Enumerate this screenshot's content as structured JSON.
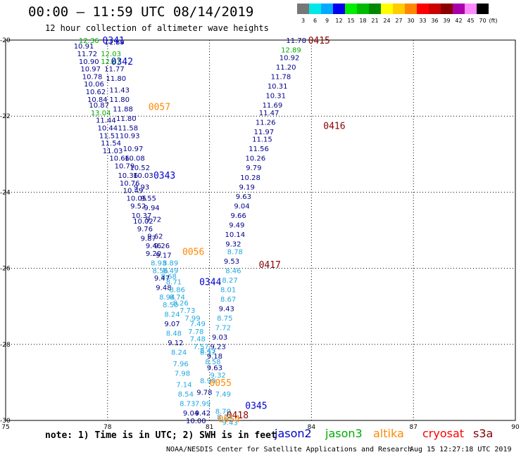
{
  "header": {
    "title": "00:00 — 11:59 UTC 08/14/2019",
    "subtitle": "12 hour collection of altimeter wave heights"
  },
  "colorbar": {
    "unit": "(ft)",
    "bins": [
      {
        "label": "3",
        "color": "#777777"
      },
      {
        "label": "6",
        "color": "#00e8e8"
      },
      {
        "label": "9",
        "color": "#00aaff"
      },
      {
        "label": "12",
        "color": "#0000ee"
      },
      {
        "label": "15",
        "color": "#00ee00"
      },
      {
        "label": "18",
        "color": "#00bb00"
      },
      {
        "label": "21",
        "color": "#008800"
      },
      {
        "label": "24",
        "color": "#ffff00"
      },
      {
        "label": "27",
        "color": "#ffcc00"
      },
      {
        "label": "30",
        "color": "#ff8800"
      },
      {
        "label": "33",
        "color": "#ff0000"
      },
      {
        "label": "36",
        "color": "#cc0000"
      },
      {
        "label": "39",
        "color": "#880000"
      },
      {
        "label": "42",
        "color": "#aa00aa"
      },
      {
        "label": "45",
        "color": "#ff88ff"
      },
      {
        "label": "70",
        "color": "#000000"
      }
    ]
  },
  "axes": {
    "lat_ticks": [
      "20",
      "22",
      "24",
      "26",
      "28",
      "30"
    ],
    "lon_ticks": [
      "75",
      "78",
      "81",
      "84",
      "87",
      "90"
    ]
  },
  "satellite_colors": {
    "jason2": "#0000cc",
    "jason3": "#00aa00",
    "altika": "#ff8800",
    "cryosat": "#ff0000",
    "s3a": "#880000",
    "light": "#22a8e0",
    "navy": "#00008b"
  },
  "tracks": [
    {
      "label": "0341",
      "lat": -20.0,
      "lon": 77.85,
      "sat": "jason2"
    },
    {
      "label": "0342",
      "lat": -20.55,
      "lon": 78.1,
      "sat": "jason2"
    },
    {
      "label": "0057",
      "lat": -21.75,
      "lon": 79.2,
      "sat": "altika"
    },
    {
      "label": "0343",
      "lat": -23.55,
      "lon": 79.35,
      "sat": "jason2"
    },
    {
      "label": "0056",
      "lat": -25.55,
      "lon": 80.2,
      "sat": "altika"
    },
    {
      "label": "0344",
      "lat": -26.35,
      "lon": 80.7,
      "sat": "jason2"
    },
    {
      "label": "0055",
      "lat": -29.0,
      "lon": 81.0,
      "sat": "altika"
    },
    {
      "label": "0345",
      "lat": -29.6,
      "lon": 82.05,
      "sat": "jason2"
    },
    {
      "label": "0418",
      "lat": -29.85,
      "lon": 81.5,
      "sat": "s3a"
    },
    {
      "label": "0054",
      "lat": -29.95,
      "lon": 81.25,
      "sat": "altika"
    },
    {
      "label": "0415",
      "lat": -20.0,
      "lon": 83.9,
      "sat": "s3a"
    },
    {
      "label": "0416",
      "lat": -22.25,
      "lon": 84.35,
      "sat": "s3a"
    },
    {
      "label": "0417",
      "lat": -25.9,
      "lon": 82.45,
      "sat": "s3a"
    }
  ],
  "readings": [
    {
      "v": "12.36",
      "lat": -20.0,
      "lon": 77.45,
      "c": "jason3"
    },
    {
      "v": "11.89",
      "lat": -20.05,
      "lon": 78.2,
      "c": "navy"
    },
    {
      "v": "10.91",
      "lat": -20.15,
      "lon": 77.3,
      "c": "navy"
    },
    {
      "v": "11.72",
      "lat": -20.35,
      "lon": 77.4,
      "c": "navy"
    },
    {
      "v": "12.03",
      "lat": -20.35,
      "lon": 78.1,
      "c": "jason3"
    },
    {
      "v": "10.90",
      "lat": -20.55,
      "lon": 77.45,
      "c": "navy"
    },
    {
      "v": "12.67",
      "lat": -20.55,
      "lon": 78.1,
      "c": "jason3"
    },
    {
      "v": "10.97",
      "lat": -20.75,
      "lon": 77.5,
      "c": "navy"
    },
    {
      "v": "11.77",
      "lat": -20.75,
      "lon": 78.2,
      "c": "navy"
    },
    {
      "v": "10.78",
      "lat": -20.95,
      "lon": 77.55,
      "c": "navy"
    },
    {
      "v": "11.80",
      "lat": -21.0,
      "lon": 78.25,
      "c": "navy"
    },
    {
      "v": "10.06",
      "lat": -21.15,
      "lon": 77.6,
      "c": "navy"
    },
    {
      "v": "10.62",
      "lat": -21.35,
      "lon": 77.65,
      "c": "navy"
    },
    {
      "v": "11.43",
      "lat": -21.3,
      "lon": 78.35,
      "c": "navy"
    },
    {
      "v": "10.84",
      "lat": -21.55,
      "lon": 77.7,
      "c": "navy"
    },
    {
      "v": "11.80",
      "lat": -21.55,
      "lon": 78.35,
      "c": "navy"
    },
    {
      "v": "10.87",
      "lat": -21.7,
      "lon": 77.75,
      "c": "navy"
    },
    {
      "v": "11.88",
      "lat": -21.8,
      "lon": 78.45,
      "c": "navy"
    },
    {
      "v": "13.04",
      "lat": -21.9,
      "lon": 77.8,
      "c": "jason3"
    },
    {
      "v": "11.80",
      "lat": -22.05,
      "lon": 78.55,
      "c": "navy"
    },
    {
      "v": "11.44",
      "lat": -22.1,
      "lon": 77.95,
      "c": "navy"
    },
    {
      "v": "10.44",
      "lat": -22.3,
      "lon": 78.0,
      "c": "navy"
    },
    {
      "v": "11.58",
      "lat": -22.3,
      "lon": 78.6,
      "c": "navy"
    },
    {
      "v": "11.51",
      "lat": -22.5,
      "lon": 78.05,
      "c": "navy"
    },
    {
      "v": "10.93",
      "lat": -22.5,
      "lon": 78.65,
      "c": "navy"
    },
    {
      "v": "11.54",
      "lat": -22.7,
      "lon": 78.1,
      "c": "navy"
    },
    {
      "v": "10.97",
      "lat": -22.85,
      "lon": 78.75,
      "c": "navy"
    },
    {
      "v": "11.03",
      "lat": -22.9,
      "lon": 78.15,
      "c": "navy"
    },
    {
      "v": "10.66",
      "lat": -23.1,
      "lon": 78.35,
      "c": "navy"
    },
    {
      "v": "10.08",
      "lat": -23.1,
      "lon": 78.8,
      "c": "navy"
    },
    {
      "v": "10.79",
      "lat": -23.3,
      "lon": 78.5,
      "c": "navy"
    },
    {
      "v": "10.52",
      "lat": -23.35,
      "lon": 78.95,
      "c": "navy"
    },
    {
      "v": "10.36",
      "lat": -23.55,
      "lon": 78.6,
      "c": "navy"
    },
    {
      "v": "10.03",
      "lat": -23.55,
      "lon": 79.05,
      "c": "navy"
    },
    {
      "v": "10.76",
      "lat": -23.75,
      "lon": 78.65,
      "c": "navy"
    },
    {
      "v": "10.49",
      "lat": -23.95,
      "lon": 78.75,
      "c": "navy"
    },
    {
      "v": "9.93",
      "lat": -23.85,
      "lon": 79.0,
      "c": "navy"
    },
    {
      "v": "10.05",
      "lat": -24.15,
      "lon": 78.85,
      "c": "navy"
    },
    {
      "v": "9.55",
      "lat": -24.15,
      "lon": 79.2,
      "c": "navy"
    },
    {
      "v": "9.52",
      "lat": -24.35,
      "lon": 78.9,
      "c": "navy"
    },
    {
      "v": "9.94",
      "lat": -24.4,
      "lon": 79.3,
      "c": "navy"
    },
    {
      "v": "10.37",
      "lat": -24.6,
      "lon": 79.0,
      "c": "navy"
    },
    {
      "v": "10.02",
      "lat": -24.75,
      "lon": 79.05,
      "c": "navy"
    },
    {
      "v": "9.72",
      "lat": -24.7,
      "lon": 79.35,
      "c": "navy"
    },
    {
      "v": "9.76",
      "lat": -24.95,
      "lon": 79.1,
      "c": "navy"
    },
    {
      "v": "9.87",
      "lat": -25.2,
      "lon": 79.2,
      "c": "navy"
    },
    {
      "v": "9.62",
      "lat": -25.15,
      "lon": 79.4,
      "c": "navy"
    },
    {
      "v": "9.46",
      "lat": -25.4,
      "lon": 79.35,
      "c": "navy"
    },
    {
      "v": "9.26",
      "lat": -25.4,
      "lon": 79.6,
      "c": "navy"
    },
    {
      "v": "9.20",
      "lat": -25.6,
      "lon": 79.35,
      "c": "navy"
    },
    {
      "v": "9.17",
      "lat": -25.65,
      "lon": 79.65,
      "c": "navy"
    },
    {
      "v": "8.93",
      "lat": -25.85,
      "lon": 79.5,
      "c": "light"
    },
    {
      "v": "8.89",
      "lat": -25.85,
      "lon": 79.85,
      "c": "light"
    },
    {
      "v": "8.56",
      "lat": -26.05,
      "lon": 79.55,
      "c": "light"
    },
    {
      "v": "8.49",
      "lat": -26.05,
      "lon": 79.85,
      "c": "light"
    },
    {
      "v": "8.68",
      "lat": -26.2,
      "lon": 79.8,
      "c": "light"
    },
    {
      "v": "9.47",
      "lat": -26.25,
      "lon": 79.6,
      "c": "navy"
    },
    {
      "v": "8.71",
      "lat": -26.35,
      "lon": 79.95,
      "c": "light"
    },
    {
      "v": "9.48",
      "lat": -26.5,
      "lon": 79.65,
      "c": "navy"
    },
    {
      "v": "8.86",
      "lat": -26.55,
      "lon": 80.05,
      "c": "light"
    },
    {
      "v": "8.94",
      "lat": -26.75,
      "lon": 79.75,
      "c": "light"
    },
    {
      "v": "8.74",
      "lat": -26.75,
      "lon": 80.05,
      "c": "light"
    },
    {
      "v": "8.50",
      "lat": -26.95,
      "lon": 79.85,
      "c": "light"
    },
    {
      "v": "8.26",
      "lat": -26.9,
      "lon": 80.15,
      "c": "light"
    },
    {
      "v": "7.73",
      "lat": -27.1,
      "lon": 80.35,
      "c": "light"
    },
    {
      "v": "8.24",
      "lat": -27.2,
      "lon": 79.9,
      "c": "light"
    },
    {
      "v": "7.99",
      "lat": -27.3,
      "lon": 80.5,
      "c": "light"
    },
    {
      "v": "9.07",
      "lat": -27.45,
      "lon": 79.9,
      "c": "navy"
    },
    {
      "v": "7.49",
      "lat": -27.45,
      "lon": 80.65,
      "c": "light"
    },
    {
      "v": "8.48",
      "lat": -27.7,
      "lon": 79.95,
      "c": "light"
    },
    {
      "v": "7.78",
      "lat": -27.65,
      "lon": 80.6,
      "c": "light"
    },
    {
      "v": "7.48",
      "lat": -27.85,
      "lon": 80.65,
      "c": "light"
    },
    {
      "v": "9.12",
      "lat": -27.95,
      "lon": 80.0,
      "c": "navy"
    },
    {
      "v": "7.57",
      "lat": -28.05,
      "lon": 80.75,
      "c": "light"
    },
    {
      "v": "8.24",
      "lat": -28.2,
      "lon": 80.1,
      "c": "light"
    },
    {
      "v": "8.57",
      "lat": -28.2,
      "lon": 80.95,
      "c": "light"
    },
    {
      "v": "7.96",
      "lat": -28.5,
      "lon": 80.15,
      "c": "light"
    },
    {
      "v": "8.58",
      "lat": -28.45,
      "lon": 81.1,
      "c": "light"
    },
    {
      "v": "9.63",
      "lat": -28.6,
      "lon": 81.15,
      "c": "navy"
    },
    {
      "v": "7.98",
      "lat": -28.75,
      "lon": 80.2,
      "c": "light"
    },
    {
      "v": "9.32",
      "lat": -28.8,
      "lon": 81.25,
      "c": "light"
    },
    {
      "v": "7.14",
      "lat": -29.05,
      "lon": 80.25,
      "c": "light"
    },
    {
      "v": "8.90",
      "lat": -28.95,
      "lon": 80.95,
      "c": "light"
    },
    {
      "v": "9.78",
      "lat": -29.25,
      "lon": 80.85,
      "c": "navy"
    },
    {
      "v": "8.54",
      "lat": -29.3,
      "lon": 80.3,
      "c": "light"
    },
    {
      "v": "7.49",
      "lat": -29.3,
      "lon": 81.4,
      "c": "light"
    },
    {
      "v": "8.73",
      "lat": -29.55,
      "lon": 80.35,
      "c": "light"
    },
    {
      "v": "7.99",
      "lat": -29.55,
      "lon": 80.8,
      "c": "light"
    },
    {
      "v": "9.04",
      "lat": -29.8,
      "lon": 80.45,
      "c": "navy"
    },
    {
      "v": "9.42",
      "lat": -29.8,
      "lon": 80.8,
      "c": "navy"
    },
    {
      "v": "10.00",
      "lat": -30.0,
      "lon": 80.6,
      "c": "navy"
    },
    {
      "v": "8.70",
      "lat": -29.75,
      "lon": 81.4,
      "c": "light"
    },
    {
      "v": "8.24",
      "lat": -29.9,
      "lon": 81.45,
      "c": "light"
    },
    {
      "v": "9.43",
      "lat": -30.05,
      "lon": 81.6,
      "c": "light"
    },
    {
      "v": "11.78",
      "lat": -20.0,
      "lon": 83.55,
      "c": "navy"
    },
    {
      "v": "12.89",
      "lat": -20.25,
      "lon": 83.4,
      "c": "jason3"
    },
    {
      "v": "10.92",
      "lat": -20.45,
      "lon": 83.35,
      "c": "navy"
    },
    {
      "v": "11.20",
      "lat": -20.7,
      "lon": 83.25,
      "c": "navy"
    },
    {
      "v": "11.78",
      "lat": -20.95,
      "lon": 83.1,
      "c": "navy"
    },
    {
      "v": "10.31",
      "lat": -21.2,
      "lon": 83.0,
      "c": "navy"
    },
    {
      "v": "10.31",
      "lat": -21.45,
      "lon": 82.95,
      "c": "navy"
    },
    {
      "v": "11.69",
      "lat": -21.7,
      "lon": 82.85,
      "c": "navy"
    },
    {
      "v": "11.47",
      "lat": -21.9,
      "lon": 82.75,
      "c": "navy"
    },
    {
      "v": "11.26",
      "lat": -22.15,
      "lon": 82.65,
      "c": "navy"
    },
    {
      "v": "11.97",
      "lat": -22.4,
      "lon": 82.6,
      "c": "navy"
    },
    {
      "v": "11.15",
      "lat": -22.6,
      "lon": 82.55,
      "c": "navy"
    },
    {
      "v": "11.56",
      "lat": -22.85,
      "lon": 82.45,
      "c": "navy"
    },
    {
      "v": "10.26",
      "lat": -23.1,
      "lon": 82.35,
      "c": "navy"
    },
    {
      "v": "9.79",
      "lat": -23.35,
      "lon": 82.3,
      "c": "navy"
    },
    {
      "v": "10.28",
      "lat": -23.6,
      "lon": 82.2,
      "c": "navy"
    },
    {
      "v": "9.19",
      "lat": -23.85,
      "lon": 82.1,
      "c": "navy"
    },
    {
      "v": "9.63",
      "lat": -24.1,
      "lon": 82.0,
      "c": "navy"
    },
    {
      "v": "9.04",
      "lat": -24.35,
      "lon": 81.95,
      "c": "navy"
    },
    {
      "v": "9.66",
      "lat": -24.6,
      "lon": 81.85,
      "c": "navy"
    },
    {
      "v": "9.49",
      "lat": -24.85,
      "lon": 81.8,
      "c": "navy"
    },
    {
      "v": "10.14",
      "lat": -25.1,
      "lon": 81.75,
      "c": "navy"
    },
    {
      "v": "9.32",
      "lat": -25.35,
      "lon": 81.7,
      "c": "navy"
    },
    {
      "v": "8.78",
      "lat": -25.55,
      "lon": 81.75,
      "c": "light"
    },
    {
      "v": "9.53",
      "lat": -25.8,
      "lon": 81.65,
      "c": "navy"
    },
    {
      "v": "8.46",
      "lat": -26.05,
      "lon": 81.7,
      "c": "light"
    },
    {
      "v": "8.27",
      "lat": -26.3,
      "lon": 81.6,
      "c": "light"
    },
    {
      "v": "8.01",
      "lat": -26.55,
      "lon": 81.55,
      "c": "light"
    },
    {
      "v": "8.67",
      "lat": -26.8,
      "lon": 81.55,
      "c": "light"
    },
    {
      "v": "9.43",
      "lat": -27.05,
      "lon": 81.5,
      "c": "navy"
    },
    {
      "v": "8.75",
      "lat": -27.3,
      "lon": 81.45,
      "c": "light"
    },
    {
      "v": "7.72",
      "lat": -27.55,
      "lon": 81.4,
      "c": "light"
    },
    {
      "v": "9.03",
      "lat": -27.8,
      "lon": 81.3,
      "c": "navy"
    },
    {
      "v": "9.23",
      "lat": -28.05,
      "lon": 81.25,
      "c": "navy"
    },
    {
      "v": "9.18",
      "lat": -28.3,
      "lon": 81.15,
      "c": "navy"
    },
    {
      "v": "8.43",
      "lat": -28.15,
      "lon": 80.95,
      "c": "light"
    }
  ],
  "footer": {
    "note": "note: 1) Time is in UTC; 2) SWH is in feet",
    "legend": [
      {
        "label": "jason2",
        "color": "#0000cc"
      },
      {
        "label": "jason3",
        "color": "#00aa00"
      },
      {
        "label": "altika",
        "color": "#ff8800"
      },
      {
        "label": "cryosat",
        "color": "#ff0000"
      },
      {
        "label": "s3a",
        "color": "#880000"
      }
    ],
    "credit": "NOAA/NESDIS Center for Satellite Applications and Research",
    "timestamp": "Aug 15 12:27:18 UTC 2019"
  }
}
